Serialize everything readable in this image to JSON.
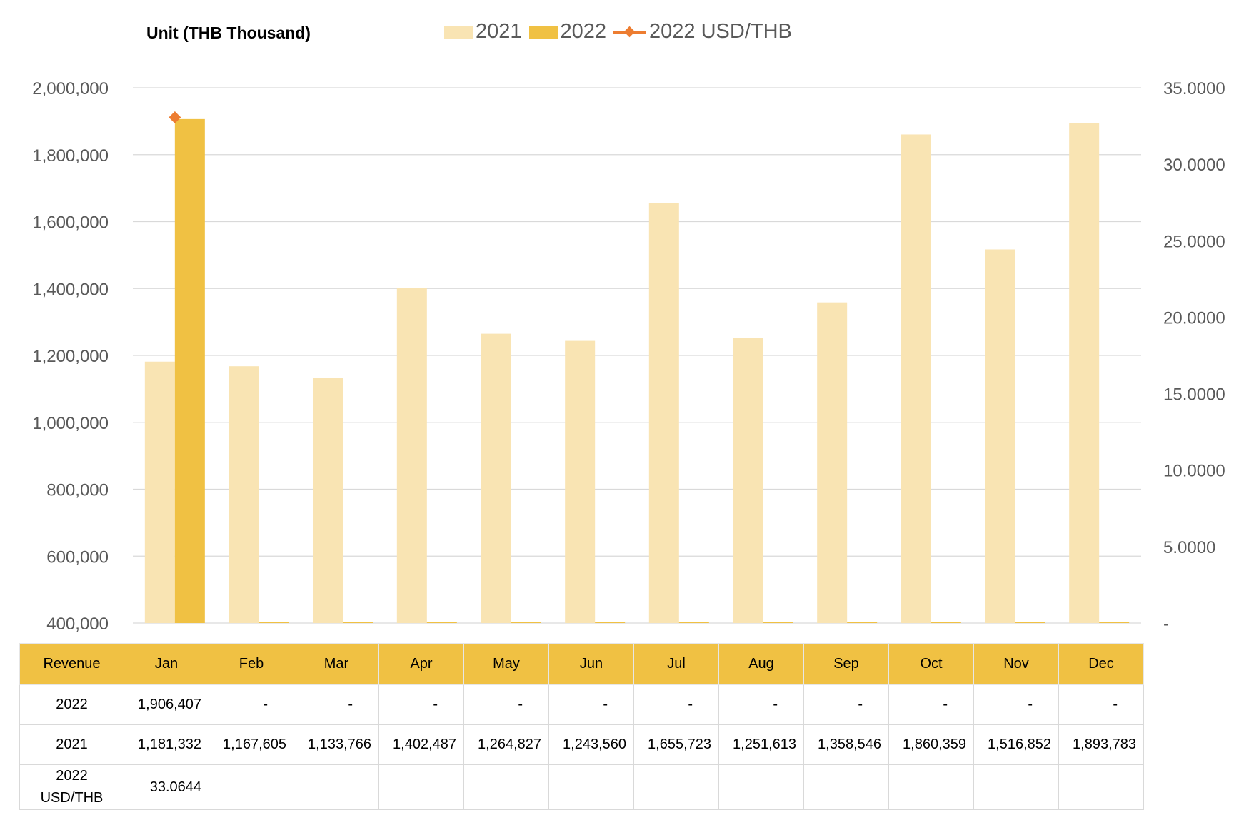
{
  "unit_label": "Unit (THB  Thousand)",
  "legend": [
    {
      "label": "2021",
      "color": "#f9e4b3",
      "kind": "bar"
    },
    {
      "label": "2022",
      "color": "#f0c143",
      "kind": "bar"
    },
    {
      "label": "2022 USD/THB",
      "color": "#ed7d31",
      "kind": "line"
    }
  ],
  "chart_data": {
    "type": "bar",
    "categories": [
      "Jan",
      "Feb",
      "Mar",
      "Apr",
      "May",
      "Jun",
      "Jul",
      "Aug",
      "Sep",
      "Oct",
      "Nov",
      "Dec"
    ],
    "series": [
      {
        "name": "2021",
        "axis": "left",
        "color": "#f9e4b3",
        "values": [
          1181332,
          1167605,
          1133766,
          1402487,
          1264827,
          1243560,
          1655723,
          1251613,
          1358546,
          1860359,
          1516852,
          1893783
        ]
      },
      {
        "name": "2022",
        "axis": "left",
        "color": "#f0c143",
        "values": [
          1906407,
          null,
          null,
          null,
          null,
          null,
          null,
          null,
          null,
          null,
          null,
          null
        ]
      },
      {
        "name": "2022 USD/THB",
        "axis": "right",
        "type": "line",
        "color": "#ed7d31",
        "values": [
          33.0644,
          null,
          null,
          null,
          null,
          null,
          null,
          null,
          null,
          null,
          null,
          null
        ]
      }
    ],
    "ylim": [
      400000,
      2000000
    ],
    "y2lim": [
      0,
      35
    ],
    "left_ticks": [
      "2,000,000",
      "1,800,000",
      "1,600,000",
      "1,400,000",
      "1,200,000",
      "1,000,000",
      "800,000",
      "600,000",
      "400,000"
    ],
    "right_ticks": [
      "35.0000",
      "30.0000",
      "25.0000",
      "20.0000",
      "15.0000",
      "10.0000",
      "5.0000",
      "-"
    ],
    "grid": true,
    "legend_position": "top"
  },
  "table": {
    "header": [
      "Revenue",
      "Jan",
      "Feb",
      "Mar",
      "Apr",
      "May",
      "Jun",
      "Jul",
      "Aug",
      "Sep",
      "Oct",
      "Nov",
      "Dec"
    ],
    "rows": [
      {
        "label": "2022",
        "cells": [
          "1,906,407",
          "-",
          "-",
          "-",
          "-",
          "-",
          "-",
          "-",
          "-",
          "-",
          "-",
          "-"
        ]
      },
      {
        "label": "2021",
        "cells": [
          "1,181,332",
          "1,167,605",
          "1,133,766",
          "1,402,487",
          "1,264,827",
          "1,243,560",
          "1,655,723",
          "1,251,613",
          "1,358,546",
          "1,860,359",
          "1,516,852",
          "1,893,783"
        ]
      },
      {
        "label_lines": [
          "2022",
          "USD/THB"
        ],
        "cells": [
          "33.0644",
          "",
          "",
          "",
          "",
          "",
          "",
          "",
          "",
          "",
          "",
          ""
        ]
      }
    ]
  }
}
